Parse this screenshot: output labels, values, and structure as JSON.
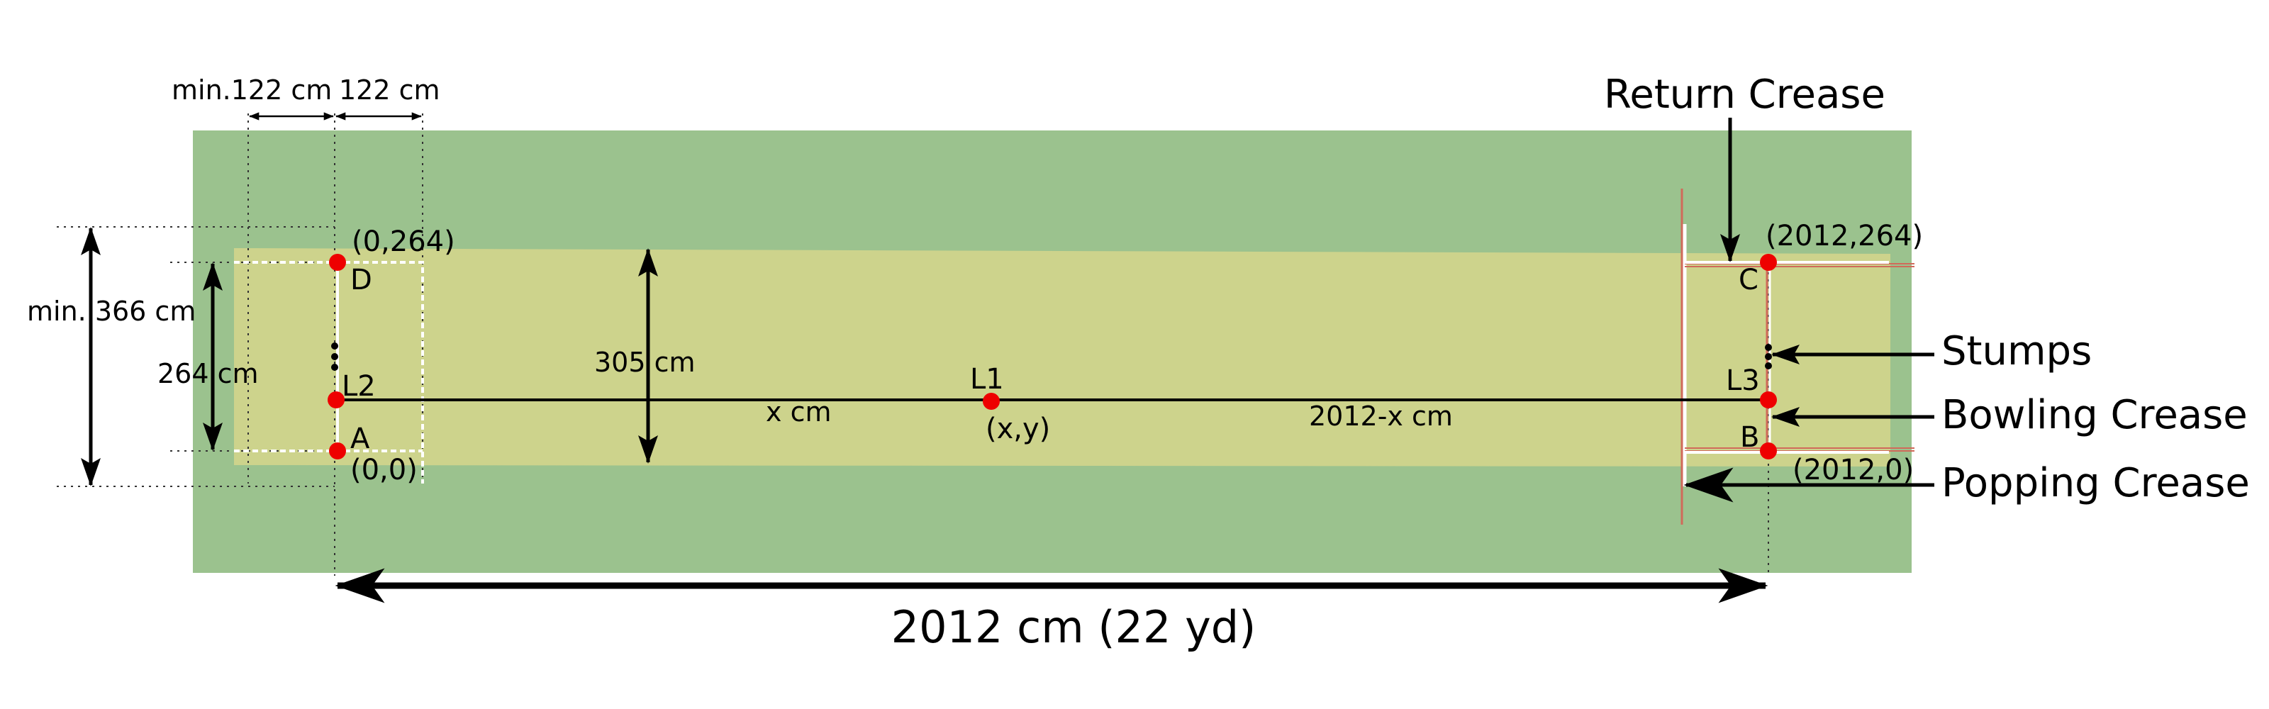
{
  "colors": {
    "field": "#9bc28e",
    "pitch": "#cdd38c",
    "crease_white": "#ffffff",
    "crease_red": "#d06a5a",
    "point": "#ee0000",
    "line": "#000000"
  },
  "dimensions": {
    "min_behind_crease": "min.122 cm",
    "popping_crease_offset": "122 cm",
    "min_width": "min. 366 cm",
    "crease_width": "264 cm",
    "pitch_width": "305 cm",
    "pitch_length": "2012 cm (22 yd)",
    "left_segment": "x cm",
    "right_segment": "2012-x cm"
  },
  "points": {
    "A": {
      "label": "A",
      "coord": "(0,0)"
    },
    "D": {
      "label": "D",
      "coord": "(0,264)"
    },
    "B": {
      "label": "B",
      "coord": "(2012,0)"
    },
    "C": {
      "label": "C",
      "coord": "(2012,264)"
    },
    "L1": {
      "label": "L1",
      "coord": "(x,y)"
    },
    "L2": {
      "label": "L2"
    },
    "L3": {
      "label": "L3"
    }
  },
  "callouts": {
    "return_crease": "Return Crease",
    "stumps": "Stumps",
    "bowling_crease": "Bowling Crease",
    "popping_crease": "Popping Crease"
  }
}
